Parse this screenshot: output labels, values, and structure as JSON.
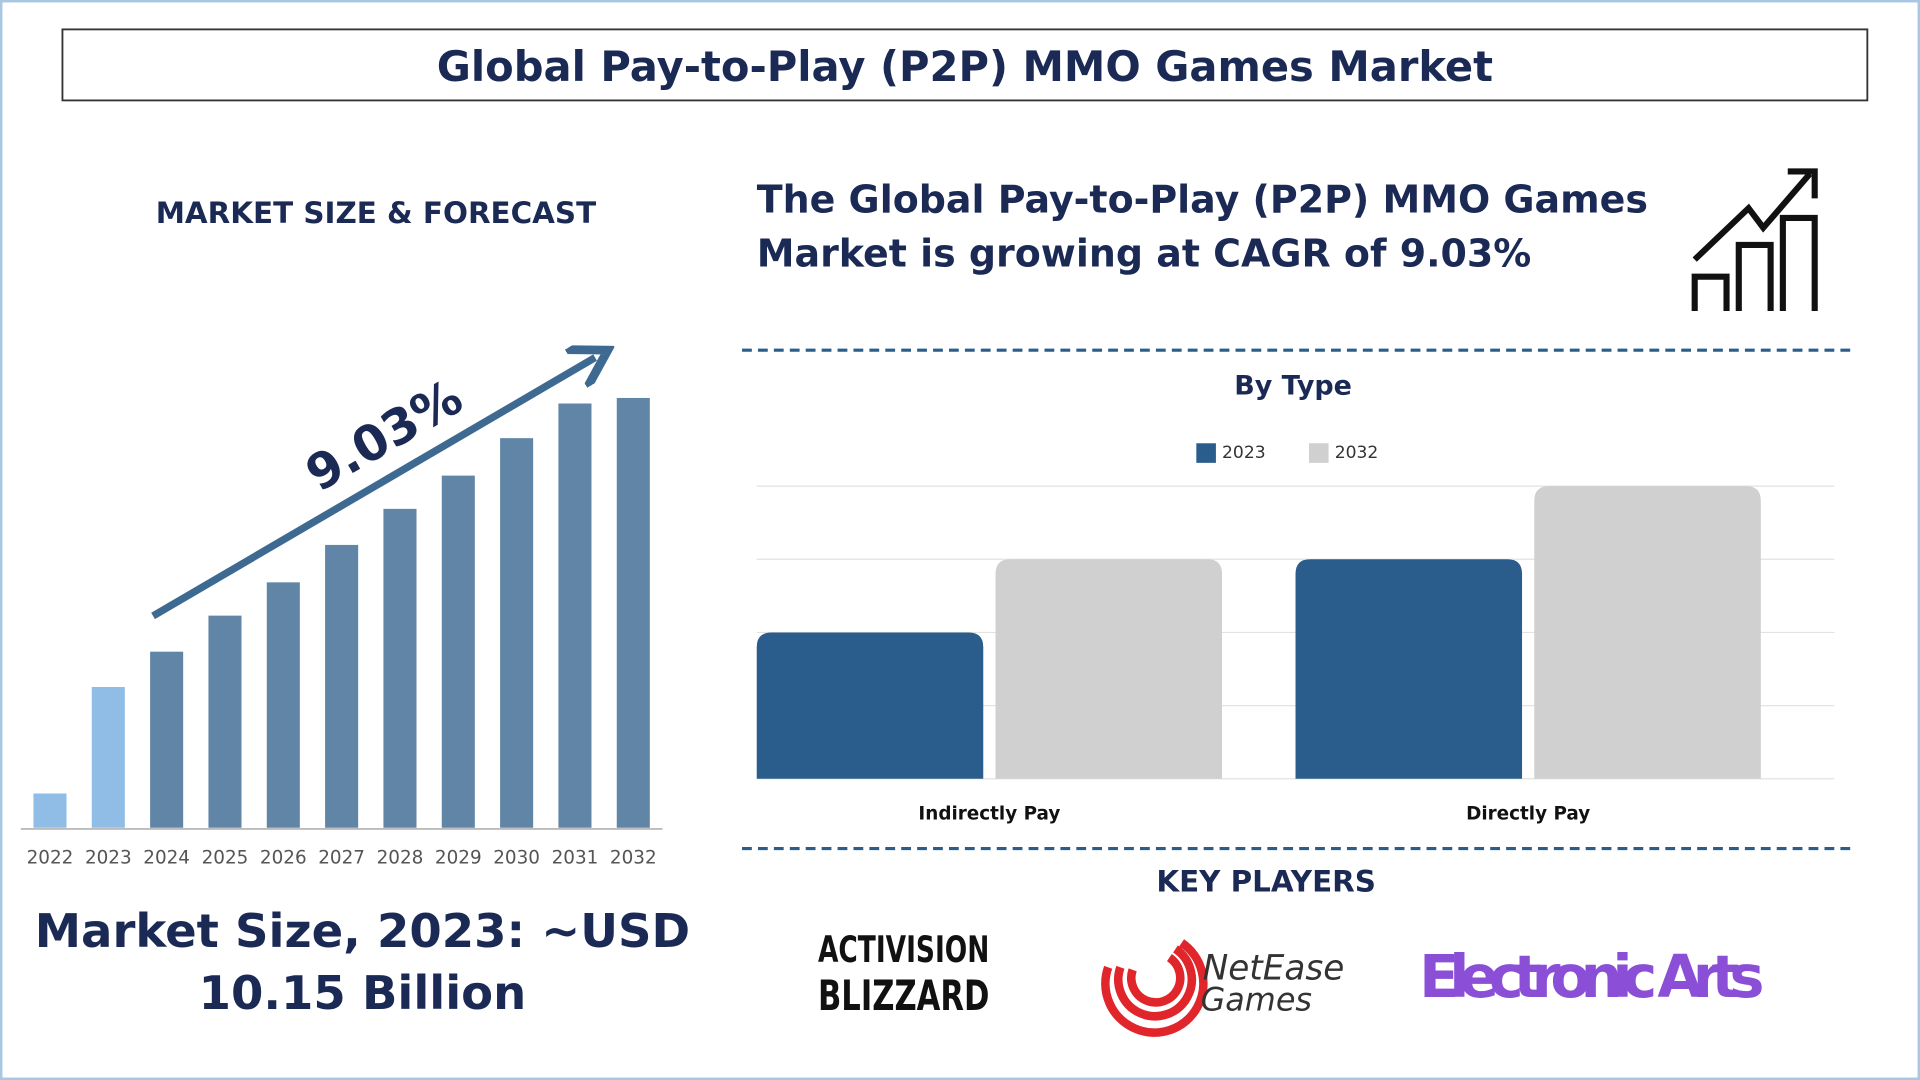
{
  "title": "Global Pay-to-Play (P2P) MMO Games Market",
  "market_size_heading": "MARKET SIZE & FORECAST",
  "headline": [
    "The Global Pay-to-Play (P2P) MMO Games",
    "Market is growing at CAGR of 9.03%"
  ],
  "market_size": [
    "Market Size, 2023: ~USD",
    "10.15 Billion"
  ],
  "key_players_heading": "KEY PLAYERS",
  "key_players": [
    {
      "lines": [
        "ACTIVISION",
        "BLIZZARD"
      ]
    },
    {
      "lines": [
        "NetEase",
        "Games"
      ]
    },
    {
      "lines": [
        "Electronic Arts"
      ]
    }
  ],
  "chart_data": [
    {
      "type": "bar",
      "categories": [
        "2022",
        "2023",
        "2024",
        "2025",
        "2026",
        "2027",
        "2028",
        "2029",
        "2030",
        "2031",
        "2032"
      ],
      "values": [
        2.47,
        10.15,
        12.7,
        15.3,
        17.7,
        20.4,
        23.0,
        25.4,
        28.1,
        30.6,
        31.0
      ],
      "colors": [
        "#8fbde6",
        "#8fbde6",
        "#6085a6",
        "#6085a6",
        "#6085a6",
        "#6085a6",
        "#6085a6",
        "#6085a6",
        "#6085a6",
        "#6085a6",
        "#6085a6"
      ],
      "annotation": "9.03%"
    },
    {
      "type": "grouped_bar",
      "title": "By Type",
      "categories": [
        "Indirectly Pay",
        "Directly Pay"
      ],
      "series": [
        {
          "name": "2023",
          "color": "#2a5d8c",
          "values": [
            2,
            3
          ]
        },
        {
          "name": "2032",
          "color": "#d0d0d0",
          "values": [
            3,
            4
          ]
        }
      ],
      "ylim": [
        0,
        4
      ],
      "gridlines": [
        0,
        1,
        2,
        3,
        4
      ]
    }
  ]
}
